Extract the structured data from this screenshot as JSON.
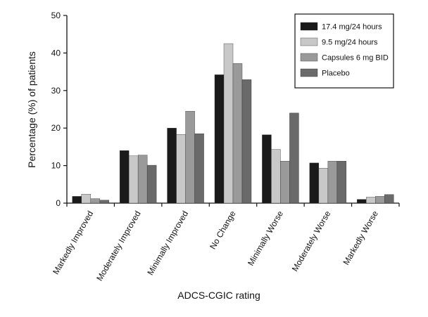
{
  "chart_data": {
    "type": "bar",
    "title": "",
    "xlabel": "ADCS-CGIC rating",
    "ylabel": "Percentage (%) of patients",
    "ylim": [
      0,
      50
    ],
    "yticks": [
      0,
      10,
      20,
      30,
      40,
      50
    ],
    "grid": false,
    "legend_position": "top-right",
    "categories": [
      "Markedly Improved",
      "Moderately Improved",
      "Minimally Improved",
      "No Change",
      "Minimally Worse",
      "Moderately Worse",
      "Markedly Worse"
    ],
    "series": [
      {
        "name": "17.4 mg/24 hours",
        "color": "#1a1a1a",
        "values": [
          1.8,
          14.0,
          20.0,
          34.2,
          18.2,
          10.7,
          1.0
        ]
      },
      {
        "name": "9.5 mg/24 hours",
        "color": "#c8c8c8",
        "values": [
          2.4,
          12.6,
          18.3,
          42.5,
          14.3,
          9.3,
          1.6
        ]
      },
      {
        "name": "Capsules 6 mg BID",
        "color": "#9a9a9a",
        "values": [
          1.2,
          12.8,
          24.5,
          37.2,
          11.2,
          11.2,
          1.8
        ]
      },
      {
        "name": "Placebo",
        "color": "#6a6a6a",
        "values": [
          0.8,
          10.1,
          18.5,
          32.9,
          24.0,
          11.2,
          2.3
        ]
      }
    ]
  }
}
